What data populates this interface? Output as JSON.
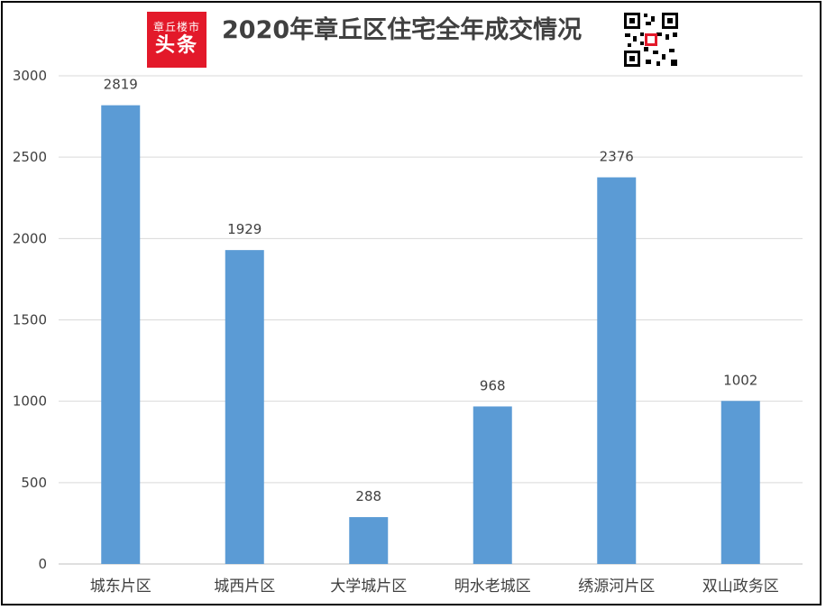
{
  "logo": {
    "line1": "章丘楼市",
    "line2": "头条"
  },
  "colors": {
    "bar": "#5b9bd5",
    "grid": "#d9d9d9",
    "logo": "#e3192a",
    "title": "#404040"
  },
  "qr_icon": "qr-code-icon",
  "chart_data": {
    "type": "bar",
    "title": "2020年章丘区住宅全年成交情况",
    "categories": [
      "城东片区",
      "城西片区",
      "大学城片区",
      "明水老城区",
      "绣源河片区",
      "双山政务区"
    ],
    "values": [
      2819,
      1929,
      288,
      968,
      2376,
      1002
    ],
    "ylim": [
      0,
      3000
    ],
    "yticks": [
      0,
      500,
      1000,
      1500,
      2000,
      2500,
      3000
    ],
    "grid": true,
    "xlabel": "",
    "ylabel": ""
  }
}
